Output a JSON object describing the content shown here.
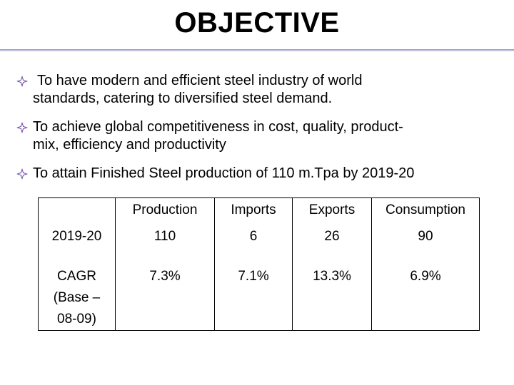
{
  "slide": {
    "title": "OBJECTIVE",
    "bullets": [
      {
        "line1": "To have modern and efficient steel industry of world",
        "line2": "standards, catering to diversified steel demand."
      },
      {
        "line1": "To achieve global competitiveness in cost, quality, product-",
        "line2": "mix, efficiency and productivity"
      },
      {
        "line1": "To attain Finished Steel production of  110 m.Tpa by 2019-20",
        "line2": ""
      }
    ],
    "bullet_icon": "diamond-bullet-icon",
    "bullet_color": "#6a3fa0",
    "rule_color": "#9090c0"
  },
  "table": {
    "headers": [
      "",
      "Production",
      "Imports",
      "Exports",
      "Consumption"
    ],
    "rows": [
      {
        "label": "2019-20",
        "values": [
          "110",
          "6",
          "26",
          "90"
        ]
      },
      {
        "label_lines": [
          "CAGR",
          "(Base –",
          "08-09)"
        ],
        "values": [
          "7.3%",
          "7.1%",
          "13.3%",
          "6.9%"
        ]
      }
    ]
  }
}
